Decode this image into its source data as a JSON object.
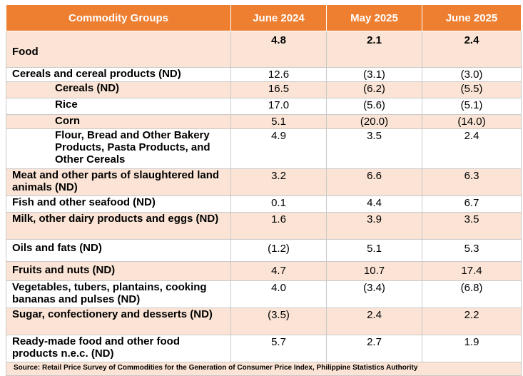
{
  "header": {
    "col1": "Commodity Groups",
    "col2": "June 2024",
    "col3": "May 2025",
    "col4": "June 2025"
  },
  "rows": [
    {
      "label": "Food",
      "v1": "4.8",
      "v2": "2.1",
      "v3": "2.4"
    },
    {
      "label": "Cereals and cereal products (ND)",
      "v1": "12.6",
      "v2": "(3.1)",
      "v3": "(3.0)"
    },
    {
      "label": "Cereals (ND)",
      "v1": "16.5",
      "v2": "(6.2)",
      "v3": "(5.5)"
    },
    {
      "label": "Rice",
      "v1": "17.0",
      "v2": "(5.6)",
      "v3": "(5.1)"
    },
    {
      "label": "Corn",
      "v1": "5.1",
      "v2": "(20.0)",
      "v3": "(14.0)"
    },
    {
      "label": "Flour, Bread and Other Bakery Products, Pasta Products, and Other Cereals",
      "v1": "4.9",
      "v2": "3.5",
      "v3": "2.4"
    },
    {
      "label": "Meat and other parts of slaughtered land animals (ND)",
      "v1": "3.2",
      "v2": "6.6",
      "v3": "6.3"
    },
    {
      "label": "Fish and other seafood (ND)",
      "v1": "0.1",
      "v2": "4.4",
      "v3": "6.7"
    },
    {
      "label": "Milk, other dairy products and eggs (ND)",
      "v1": "1.6",
      "v2": "3.9",
      "v3": "3.5"
    },
    {
      "label": "Oils and fats (ND)",
      "v1": "(1.2)",
      "v2": "5.1",
      "v3": "5.3"
    },
    {
      "label": "Fruits and nuts (ND)",
      "v1": "4.7",
      "v2": "10.7",
      "v3": "17.4"
    },
    {
      "label": "Vegetables, tubers, plantains, cooking bananas and pulses (ND)",
      "v1": "4.0",
      "v2": "(3.4)",
      "v3": "(6.8)"
    },
    {
      "label": "Sugar, confectionery and desserts (ND)",
      "v1": "(3.5)",
      "v2": "2.4",
      "v3": "2.2"
    },
    {
      "label": "Ready-made food and other food products n.e.c. (ND)",
      "v1": "5.7",
      "v2": "2.7",
      "v3": "1.9"
    }
  ],
  "source": "Source: Retail Price Survey of Commodities for the Generation of Consumer Price Index, Philippine Statistics Authority",
  "colors": {
    "header_bg": "#ee7f31",
    "header_text": "#ffffff",
    "shade_bg": "#fbe4d5",
    "border": "#c9c9c9"
  }
}
